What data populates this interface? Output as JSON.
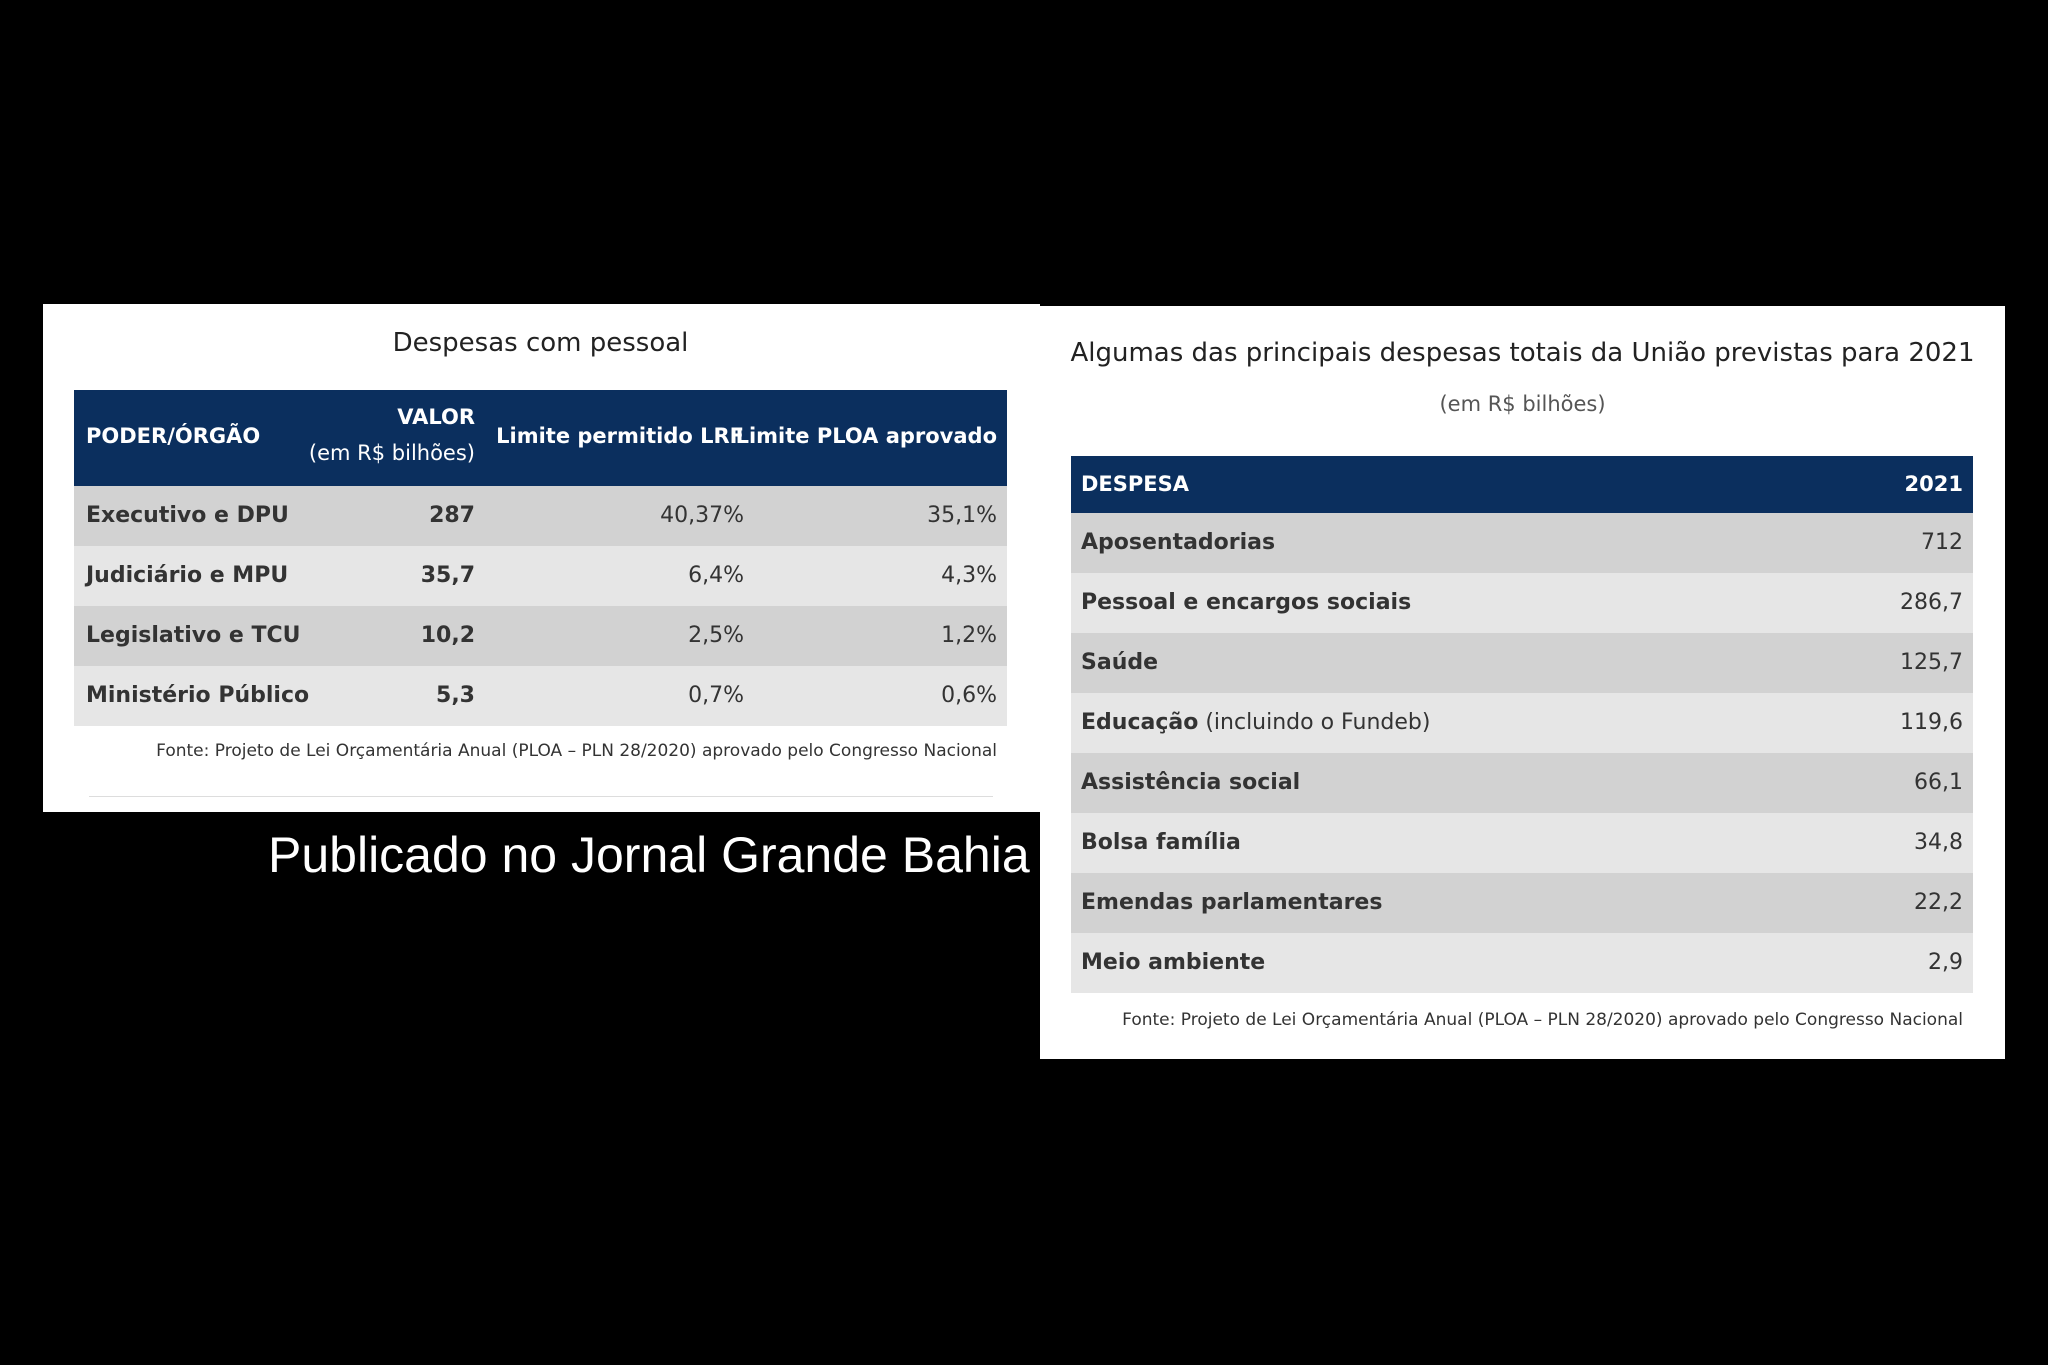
{
  "left_panel": {
    "title": "Despesas com pessoal",
    "table": {
      "header": [
        "PODER/ÓRGÃO",
        {
          "text": "VALOR",
          "sub": "(em R$ bilhões)"
        },
        "Limite permitido LRF",
        "Limite PLOA aprovado"
      ],
      "rows": [
        [
          "Executivo e DPU",
          "287",
          "40,37%",
          "35,1%"
        ],
        [
          "Judiciário e MPU",
          "35,7",
          "6,4%",
          "4,3%"
        ],
        [
          "Legislativo e TCU",
          "10,2",
          "2,5%",
          "1,2%"
        ],
        [
          "Ministério Público",
          "5,3",
          "0,7%",
          "0,6%"
        ]
      ]
    },
    "source": "Fonte: Projeto de Lei Orçamentária Anual (PLOA – PLN 28/2020) aprovado pelo Congresso Nacional"
  },
  "caption": "Publicado no Jornal Grande Bahia",
  "right_panel": {
    "title": "Algumas das principais despesas totais da União previstas para 2021",
    "subtitle": "(em R$ bilhões)",
    "table": {
      "header": [
        "DESPESA",
        "2021"
      ],
      "rows": [
        {
          "label": "Aposentadorias",
          "value": "712"
        },
        {
          "label": "Pessoal e encargos sociais",
          "value": "286,7"
        },
        {
          "label": "Saúde",
          "value": "125,7"
        },
        {
          "label": "Educação",
          "detail": "(incluindo o Fundeb)",
          "value": "119,6"
        },
        {
          "label": "Assistência social",
          "value": "66,1"
        },
        {
          "label": "Bolsa família",
          "value": "34,8"
        },
        {
          "label": "Emendas parlamentares",
          "value": "22,2"
        },
        {
          "label": "Meio ambiente",
          "value": "2,9"
        }
      ]
    },
    "source": "Fonte: Projeto de Lei Orçamentária Anual (PLOA – PLN 28/2020) aprovado pelo Congresso Nacional"
  }
}
